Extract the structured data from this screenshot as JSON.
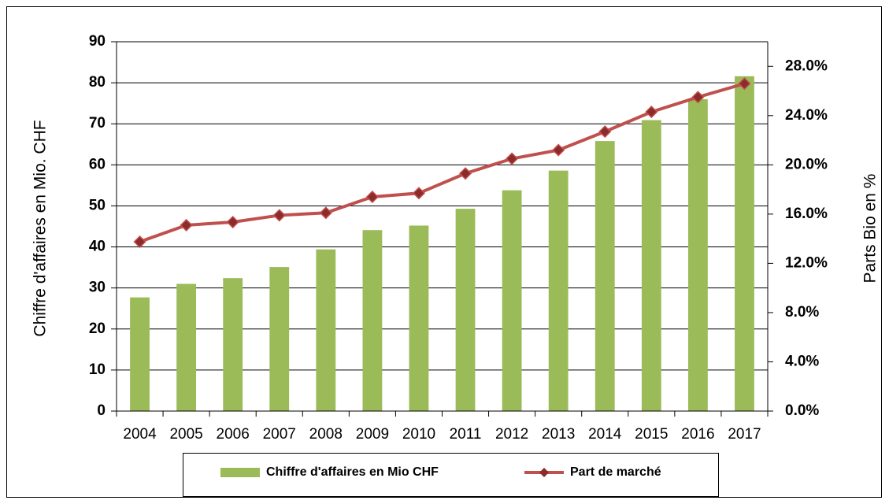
{
  "chart_data": {
    "type": "bar_line",
    "categories": [
      "2004",
      "2005",
      "2006",
      "2007",
      "2008",
      "2009",
      "2010",
      "2011",
      "2012",
      "2013",
      "2014",
      "2015",
      "2016",
      "2017"
    ],
    "series": [
      {
        "name": "Chiffre d'affaires en Mio CHF",
        "type": "bar",
        "color": "#9bbb59",
        "values": [
          27.7,
          31.0,
          32.4,
          35.1,
          39.4,
          44.1,
          45.2,
          49.3,
          53.8,
          58.6,
          65.8,
          70.9,
          76.0,
          81.6
        ]
      },
      {
        "name": "Part de marché",
        "type": "line",
        "axis": "y2",
        "color": "#c0504d",
        "marker_color": "#8b2b2b",
        "values": [
          13.75,
          15.1,
          15.35,
          15.9,
          16.1,
          17.4,
          17.7,
          19.3,
          20.5,
          21.2,
          22.7,
          24.3,
          25.5,
          26.6
        ]
      }
    ],
    "y_label": "Chiffre d'affaires en Mio. CHF",
    "y2_label": "Parts Bio en %",
    "ylim": [
      0,
      90
    ],
    "yticks": [
      0,
      10,
      20,
      30,
      40,
      50,
      60,
      70,
      80,
      90
    ],
    "y2lim": [
      0,
      30
    ],
    "y2ticks": [
      {
        "value": 0,
        "label": "0.0%"
      },
      {
        "value": 4,
        "label": "4.0%"
      },
      {
        "value": 8,
        "label": "8.0%"
      },
      {
        "value": 12,
        "label": "12.0%"
      },
      {
        "value": 16,
        "label": "16.0%"
      },
      {
        "value": 20,
        "label": "20.0%"
      },
      {
        "value": 24,
        "label": "24.0%"
      },
      {
        "value": 28,
        "label": "28.0%"
      }
    ],
    "grid": true,
    "legend": "bottom"
  }
}
